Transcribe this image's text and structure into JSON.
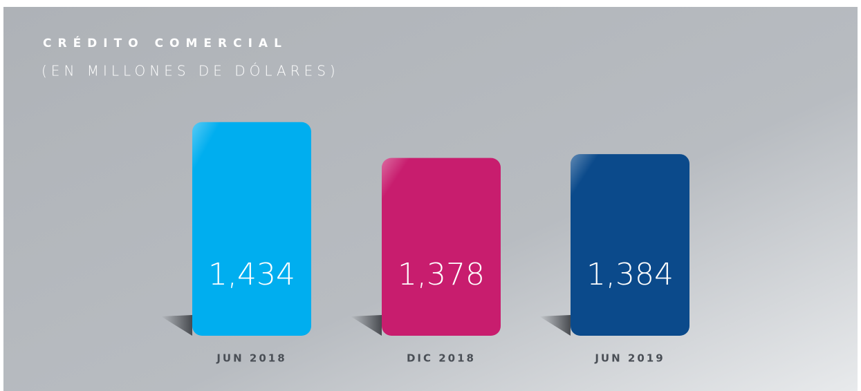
{
  "chart_data": {
    "type": "bar",
    "title": "CRÉDITO COMERCIAL",
    "subtitle": "(EN MILLONES DE DÓLARES)",
    "categories": [
      "JUN 2018",
      "DIC 2018",
      "JUN 2019"
    ],
    "values": [
      1434,
      1378,
      1384
    ],
    "value_labels": [
      "1,434",
      "1,378",
      "1,384"
    ],
    "colors": [
      "#00aeef",
      "#c81d6e",
      "#0b4a8b"
    ],
    "ylim": [
      1100,
      1450
    ]
  }
}
